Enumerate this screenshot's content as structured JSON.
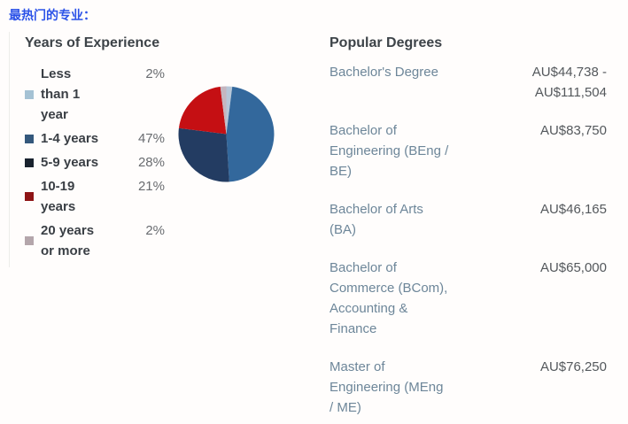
{
  "page": {
    "title": "最热门的专业："
  },
  "colors": {
    "page_title": "#2b52e8",
    "heading_text": "#3d4348",
    "legend_label_text": "#3a3f45",
    "muted_text": "#696c70",
    "degree_link_text": "#6d8699",
    "salary_text": "#54585c"
  },
  "experience": {
    "heading": "Years of Experience",
    "items": [
      {
        "label": "Less than 1 year",
        "percent": "2%",
        "color": "#a5c2d4"
      },
      {
        "label": "1-4 years",
        "percent": "47%",
        "color": "#34587c"
      },
      {
        "label": "5-9 years",
        "percent": "28%",
        "color": "#19222e"
      },
      {
        "label": "10-19 years",
        "percent": "21%",
        "color": "#8e1416"
      },
      {
        "label": "20 years or more",
        "percent": "2%",
        "color": "#b4a6ab"
      }
    ]
  },
  "degrees": {
    "heading": "Popular Degrees",
    "items": [
      {
        "name": "Bachelor's Degree",
        "value": "AU$44,738 - AU$111,504"
      },
      {
        "name": "Bachelor of Engineering (BEng / BE)",
        "value": "AU$83,750"
      },
      {
        "name": "Bachelor of Arts (BA)",
        "value": "AU$46,165"
      },
      {
        "name": "Bachelor of Commerce (BCom), Accounting & Finance",
        "value": "AU$65,000"
      },
      {
        "name": "Master of Engineering (MEng / ME)",
        "value": "AU$76,250"
      }
    ]
  },
  "chart_data": {
    "type": "pie",
    "title": "Years of Experience",
    "categories": [
      "Less than 1 year",
      "1-4 years",
      "5-9 years",
      "10-19 years",
      "20 years or more"
    ],
    "values": [
      2,
      47,
      28,
      21,
      2
    ],
    "unit": "percent",
    "colors": [
      "#b7c7d8",
      "#33689c",
      "#233c62",
      "#c50f13",
      "#c5b6bf"
    ],
    "start_angle_deg": 0,
    "direction": "clockwise",
    "legend_position": "left"
  }
}
